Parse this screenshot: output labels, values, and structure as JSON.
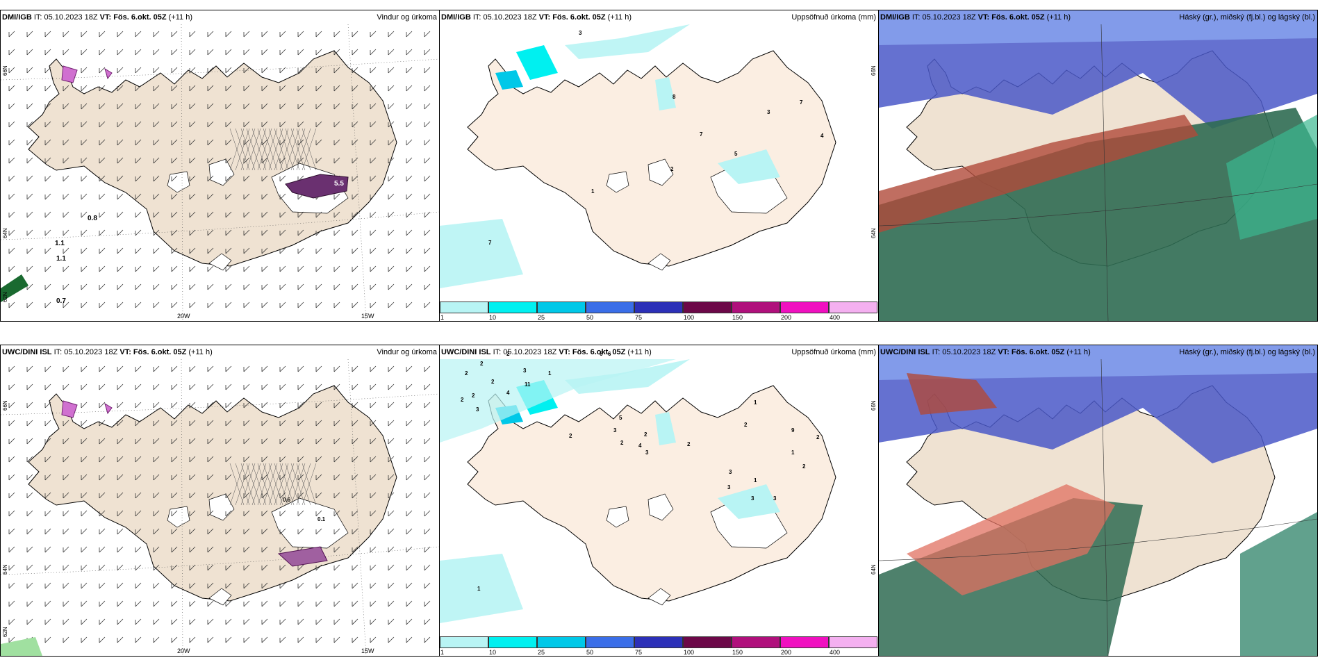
{
  "rows": [
    {
      "model": "DMI/IGB",
      "panels": [
        {
          "it_label": "IT: 05.10.2023 18Z",
          "vt_label": "VT: Fös. 6.okt. 05Z",
          "lead": "(+11 h)",
          "title": "Vindur og úrkoma",
          "lon_labels": [
            "20W",
            "15W"
          ],
          "lat_labels": [
            "66N",
            "64N",
            "62N"
          ],
          "contour_labels": [
            "0.8",
            "1.1",
            "1.1",
            "0.7",
            "5.5"
          ]
        },
        {
          "it_label": "IT: 05.10.2023 18Z",
          "vt_label": "VT: Fös. 6.okt. 05Z",
          "lead": "(+11 h)",
          "title": "Uppsöfnuð úrkoma (mm)",
          "lat_labels": [
            "66N",
            "64N"
          ],
          "contour_labels": [
            "3",
            "8",
            "7",
            "3",
            "7",
            "4",
            "5",
            "2",
            "1",
            "7"
          ]
        },
        {
          "it_label": "IT: 05.10.2023 18Z",
          "vt_label": "VT: Fös. 6.okt. 05Z",
          "lead": "(+11 h)",
          "title": "Háský (gr.), miðský (fj.bl.) og lágský (bl.)"
        }
      ]
    },
    {
      "model": "UWC/DINI ISL",
      "panels": [
        {
          "it_label": "IT: 05.10.2023 18Z",
          "vt_label": "VT: Fös. 6.okt. 05Z",
          "lead": "(+11 h)",
          "title": "Vindur og úrkoma",
          "lon_labels": [
            "20W",
            "15W"
          ],
          "lat_labels": [
            "66N",
            "64N",
            "62N"
          ],
          "contour_labels": [
            "0.6",
            "0.1"
          ]
        },
        {
          "it_label": "IT: 05.10.2023 18Z",
          "vt_label": "VT: Fös. 6.okt. 05Z",
          "lead": "(+11 h)",
          "title": "Uppsöfnuð úrkoma (mm)",
          "lat_labels": [
            "66N",
            "64N"
          ],
          "contour_labels": [
            "2",
            "2",
            "6",
            "6",
            "2",
            "2",
            "2",
            "2",
            "3",
            "11",
            "4",
            "3",
            "1",
            "5",
            "3",
            "2",
            "4",
            "3",
            "2",
            "2",
            "2",
            "2",
            "1",
            "9",
            "2",
            "1",
            "2",
            "3",
            "3",
            "3",
            "1",
            "3",
            "1"
          ]
        },
        {
          "it_label": "IT: 05.10.2023 18Z",
          "vt_label": "VT: Fös. 6.okt. 05Z",
          "lead": "(+11 h)",
          "title": "Háský (gr.), miðský (fj.bl.) og lágský (bl.)"
        }
      ]
    }
  ],
  "precip_legend": {
    "ticks": [
      "1",
      "10",
      "25",
      "50",
      "75",
      "100",
      "150",
      "200",
      "400"
    ],
    "colors": [
      "#b8f4f4",
      "#00f0f0",
      "#00c8e8",
      "#3a6ee8",
      "#2c30b8",
      "#6c0848",
      "#b0107c",
      "#f010c0",
      "#f4b0f0"
    ]
  },
  "colors": {
    "land": "#efe2d2",
    "land_precip": "#fbeee2",
    "cloud_high": "#2f6b52",
    "cloud_mid": "#4a58c8",
    "cloud_low": "#b04a3a"
  }
}
